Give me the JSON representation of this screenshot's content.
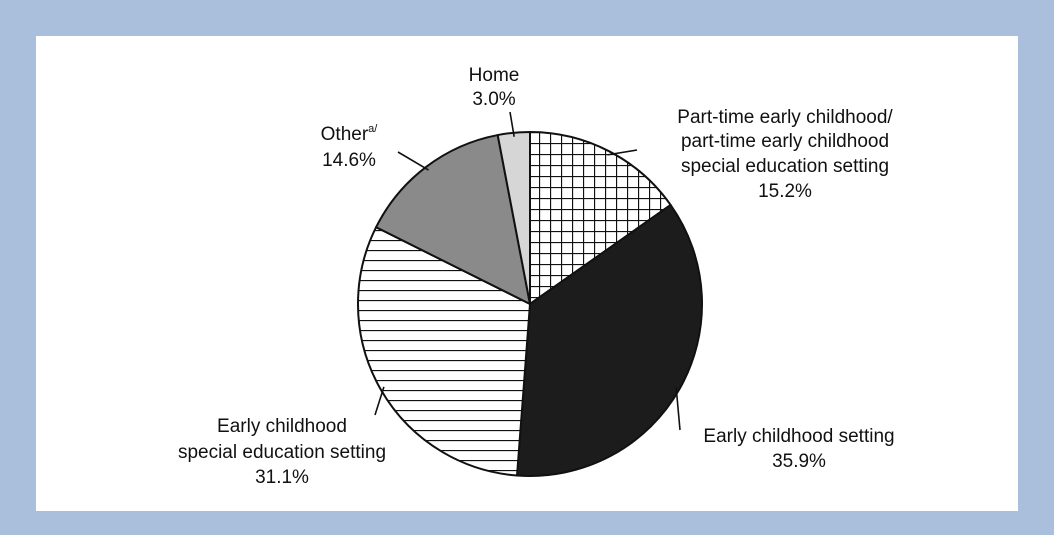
{
  "chart_data": {
    "type": "pie",
    "start_angle_deg": 0,
    "direction": "clockwise",
    "slices": [
      {
        "label_lines": [
          "Part-time early childhood/",
          "part-time early childhood",
          "special education setting"
        ],
        "value_label": "15.2%",
        "value": 15.2,
        "fill": "grid"
      },
      {
        "label_lines": [
          "Early childhood setting"
        ],
        "value_label": "35.9%",
        "value": 35.9,
        "fill": "#1c1c1c"
      },
      {
        "label_lines": [
          "Early childhood",
          "special education setting"
        ],
        "value_label": "31.1%",
        "value": 31.1,
        "fill": "hlines"
      },
      {
        "label_lines": [
          "Other",
          "a/"
        ],
        "value_label": "14.6%",
        "value": 14.6,
        "fill": "#8a8a8a"
      },
      {
        "label_lines": [
          "Home"
        ],
        "value_label": "3.0%",
        "value": 3.0,
        "fill": "#d6d6d6"
      }
    ]
  },
  "colors": {
    "frame": "#a9bfdc",
    "panel": "#ffffff",
    "outline": "#111111"
  }
}
